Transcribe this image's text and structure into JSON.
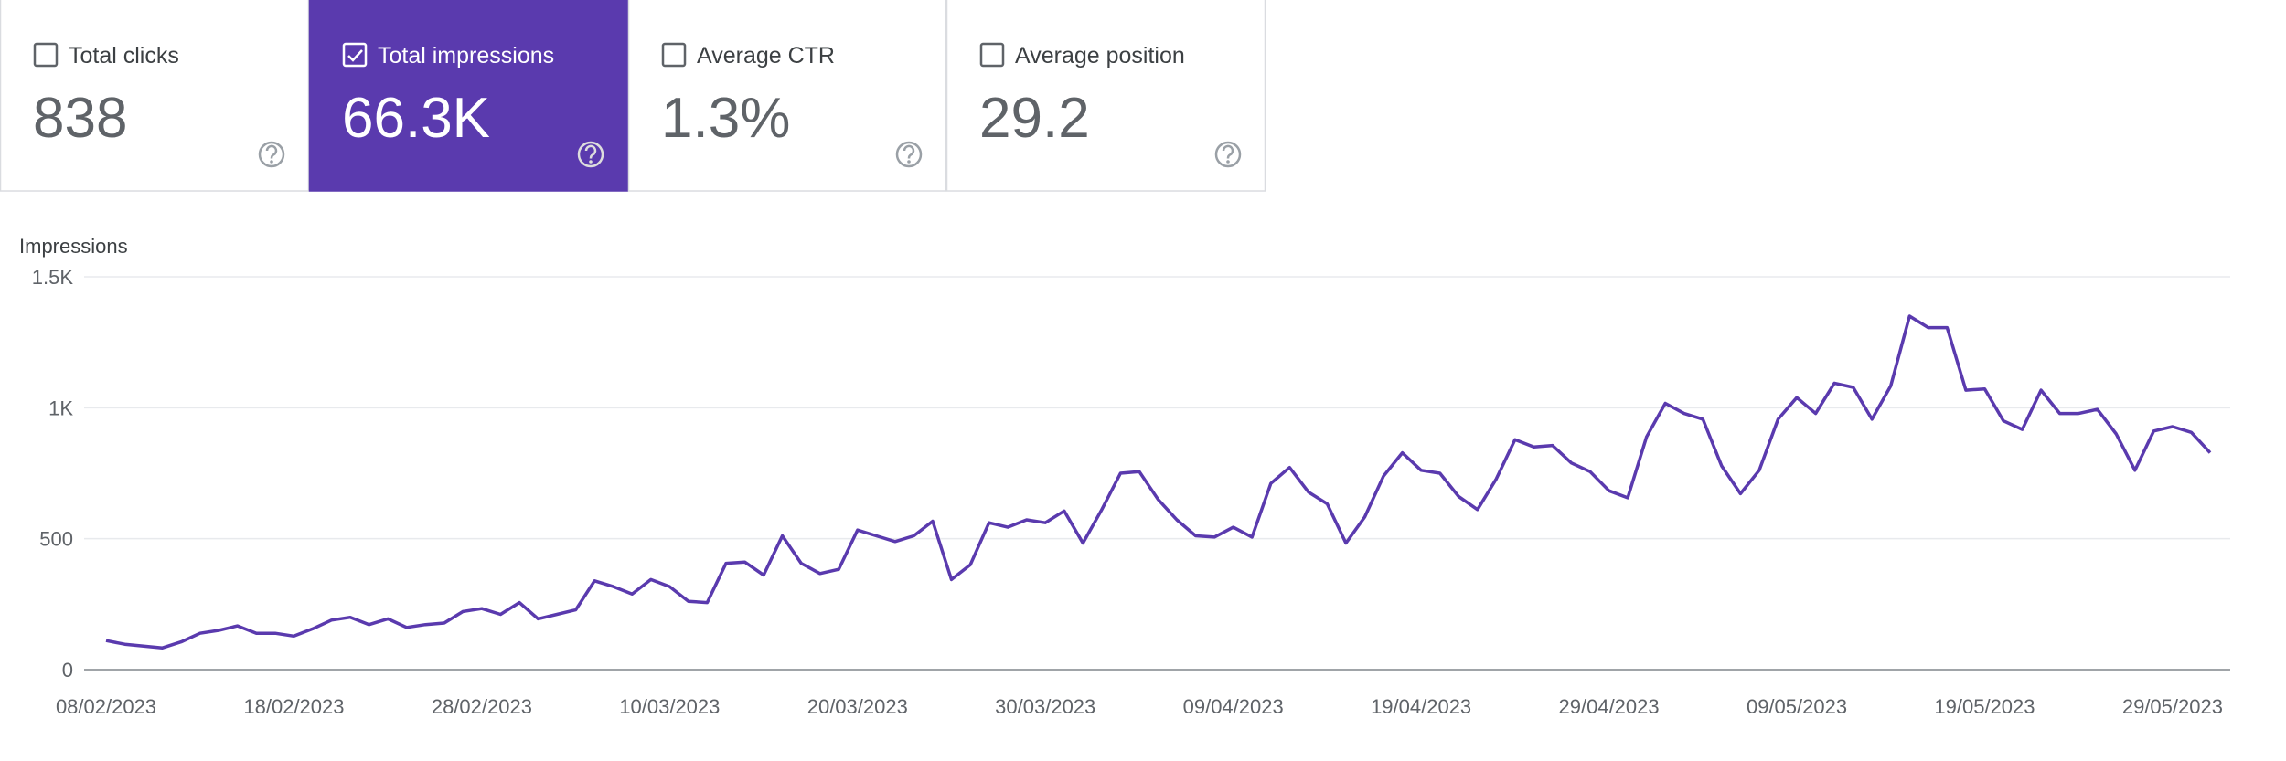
{
  "metrics": [
    {
      "label": "Total clicks",
      "value": "838",
      "selected": false
    },
    {
      "label": "Total impressions",
      "value": "66.3K",
      "selected": true
    },
    {
      "label": "Average CTR",
      "value": "1.3%",
      "selected": false
    },
    {
      "label": "Average position",
      "value": "29.2",
      "selected": false
    }
  ],
  "chart_data": {
    "type": "line",
    "y_label": "Impressions",
    "x": [
      "08/02/2023",
      "09/02/2023",
      "10/02/2023",
      "11/02/2023",
      "12/02/2023",
      "13/02/2023",
      "14/02/2023",
      "15/02/2023",
      "16/02/2023",
      "17/02/2023",
      "18/02/2023",
      "19/02/2023",
      "20/02/2023",
      "21/02/2023",
      "22/02/2023",
      "23/02/2023",
      "24/02/2023",
      "25/02/2023",
      "26/02/2023",
      "27/02/2023",
      "28/02/2023",
      "01/03/2023",
      "02/03/2023",
      "03/03/2023",
      "04/03/2023",
      "05/03/2023",
      "06/03/2023",
      "07/03/2023",
      "08/03/2023",
      "09/03/2023",
      "10/03/2023",
      "11/03/2023",
      "12/03/2023",
      "13/03/2023",
      "14/03/2023",
      "15/03/2023",
      "16/03/2023",
      "17/03/2023",
      "18/03/2023",
      "19/03/2023",
      "20/03/2023",
      "21/03/2023",
      "22/03/2023",
      "23/03/2023",
      "24/03/2023",
      "25/03/2023",
      "26/03/2023",
      "27/03/2023",
      "28/03/2023",
      "29/03/2023",
      "30/03/2023",
      "31/03/2023",
      "01/04/2023",
      "02/04/2023",
      "03/04/2023",
      "04/04/2023",
      "05/04/2023",
      "06/04/2023",
      "07/04/2023",
      "08/04/2023",
      "09/04/2023",
      "10/04/2023",
      "11/04/2023",
      "12/04/2023",
      "13/04/2023",
      "14/04/2023",
      "15/04/2023",
      "16/04/2023",
      "17/04/2023",
      "18/04/2023",
      "19/04/2023",
      "20/04/2023",
      "21/04/2023",
      "22/04/2023",
      "23/04/2023",
      "24/04/2023",
      "25/04/2023",
      "26/04/2023",
      "27/04/2023",
      "28/04/2023",
      "29/04/2023",
      "30/04/2023",
      "01/05/2023",
      "02/05/2023",
      "03/05/2023",
      "04/05/2023",
      "05/05/2023",
      "06/05/2023",
      "07/05/2023",
      "08/05/2023",
      "09/05/2023",
      "10/05/2023",
      "11/05/2023",
      "12/05/2023",
      "13/05/2023",
      "14/05/2023",
      "15/05/2023",
      "16/05/2023",
      "17/05/2023",
      "18/05/2023",
      "19/05/2023",
      "20/05/2023",
      "21/05/2023",
      "22/05/2023",
      "23/05/2023",
      "24/05/2023",
      "25/05/2023",
      "26/05/2023",
      "27/05/2023",
      "28/05/2023",
      "29/05/2023",
      "30/05/2023",
      "31/05/2023"
    ],
    "xticks": [
      "08/02/2023",
      "18/02/2023",
      "28/02/2023",
      "10/03/2023",
      "20/03/2023",
      "30/03/2023",
      "09/04/2023",
      "19/04/2023",
      "29/04/2023",
      "09/05/2023",
      "19/05/2023",
      "29/05/2023"
    ],
    "series": [
      {
        "name": "Impressions",
        "color": "#5a3aae",
        "values": [
          111,
          97,
          90,
          83,
          106,
          139,
          150,
          167,
          139,
          139,
          128,
          156,
          189,
          200,
          172,
          194,
          161,
          172,
          178,
          222,
          233,
          211,
          256,
          194,
          211,
          228,
          339,
          317,
          289,
          344,
          317,
          261,
          256,
          406,
          411,
          361,
          511,
          406,
          367,
          383,
          533,
          511,
          489,
          511,
          567,
          344,
          400,
          561,
          544,
          572,
          561,
          606,
          483,
          611,
          750,
          756,
          650,
          572,
          511,
          506,
          544,
          506,
          711,
          772,
          678,
          633,
          483,
          583,
          739,
          828,
          761,
          750,
          661,
          611,
          728,
          878,
          850,
          856,
          789,
          756,
          683,
          656,
          889,
          1017,
          978,
          956,
          778,
          672,
          761,
          956,
          1039,
          978,
          1094,
          1078,
          956,
          1083,
          1350,
          1306,
          1306,
          1067,
          1072,
          950,
          917,
          1067,
          978,
          978,
          994,
          900,
          761,
          911,
          928,
          906,
          828
        ]
      }
    ],
    "ylim": [
      0,
      1500
    ],
    "yticks": [
      0,
      500,
      {
        "value": 1000,
        "label": "1K"
      },
      {
        "value": 1500,
        "label": "1.5K"
      }
    ],
    "grid": true
  }
}
